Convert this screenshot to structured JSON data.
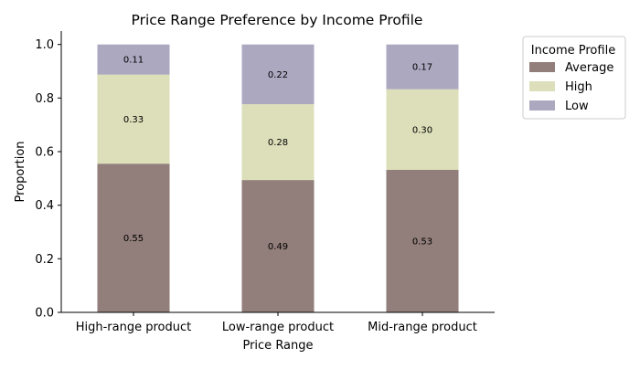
{
  "chart_data": {
    "type": "bar",
    "stacked": true,
    "title": "Price Range Preference by Income Profile",
    "xlabel": "Price Range",
    "ylabel": "Proportion",
    "ylim": [
      0,
      1.05
    ],
    "yticks": [
      0.0,
      0.2,
      0.4,
      0.6,
      0.8,
      1.0
    ],
    "ytick_labels": [
      "0.0",
      "0.2",
      "0.4",
      "0.6",
      "0.8",
      "1.0"
    ],
    "grid": false,
    "categories": [
      "High-range product",
      "Low-range product",
      "Mid-range product"
    ],
    "series": [
      {
        "name": "Average",
        "color": "#927e7a",
        "values": [
          0.555,
          0.494,
          0.532
        ],
        "labels": [
          "0.55",
          "0.49",
          "0.53"
        ]
      },
      {
        "name": "High",
        "color": "#dcdfb9",
        "values": [
          0.333,
          0.283,
          0.301
        ],
        "labels": [
          "0.33",
          "0.28",
          "0.30"
        ]
      },
      {
        "name": "Low",
        "color": "#aca8c0",
        "values": [
          0.112,
          0.223,
          0.167
        ],
        "labels": [
          "0.11",
          "0.22",
          "0.17"
        ]
      }
    ],
    "legend": {
      "title": "Income Profile",
      "position": "outside-right"
    }
  }
}
